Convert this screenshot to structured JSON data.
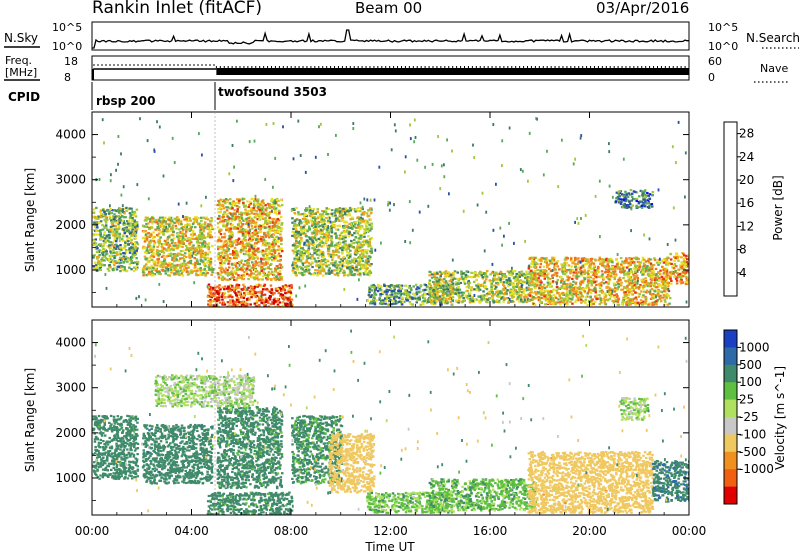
{
  "header": {
    "title": "Rankin Inlet (fitACF)",
    "beam": "Beam 00",
    "date": "03/Apr/2016"
  },
  "colors": {
    "noise_trace": "#000000",
    "axis": "#000000"
  },
  "noise_panel": {
    "left_label": "N.Sky",
    "right_label": "N.Search",
    "left_ticks": [
      "10^5",
      "10^0"
    ],
    "right_ticks": [
      "10^5",
      "10^0"
    ]
  },
  "freq_panel": {
    "left_label_1": "Freq.",
    "left_label_2": "[MHz]",
    "left_ticks": [
      "18",
      "8"
    ],
    "right_label": "Nave",
    "right_ticks": [
      "60",
      "0"
    ]
  },
  "cpid_panel": {
    "label": "CPID",
    "modes": [
      {
        "name": "rbsp 200",
        "start_hour": 0
      },
      {
        "name": "twofsound 3503",
        "start_hour": 5
      }
    ]
  },
  "x_axis": {
    "label": "Time UT",
    "ticks": [
      "00:00",
      "04:00",
      "08:00",
      "12:00",
      "16:00",
      "20:00",
      "00:00"
    ],
    "range_hours": [
      0,
      24
    ]
  },
  "chart_data": [
    {
      "type": "heatmap",
      "name": "power",
      "ylabel": "Slant Range [km]",
      "yticks": [
        "1000",
        "2000",
        "3000",
        "4000"
      ],
      "ylim": [
        180,
        4500
      ],
      "xlim_hours": [
        0,
        24
      ],
      "colorbar": {
        "label": "Power [dB]",
        "ticks": [
          "4",
          "8",
          "12",
          "16",
          "20",
          "24",
          "28"
        ],
        "range": [
          0,
          30
        ],
        "colors": [
          "#1010e8",
          "#2a4db0",
          "#3d7a6a",
          "#58a85a",
          "#9fc83a",
          "#e8e020",
          "#f0a020",
          "#f07020",
          "#e83010",
          "#d00000"
        ]
      },
      "echo_regions": [
        {
          "t0": 0.0,
          "t1": 1.8,
          "r0": 1000,
          "r1": 2400,
          "level": 12
        },
        {
          "t0": 2.0,
          "t1": 4.8,
          "r0": 900,
          "r1": 2200,
          "level": 16
        },
        {
          "t0": 5.0,
          "t1": 7.6,
          "r0": 800,
          "r1": 2600,
          "level": 18
        },
        {
          "t0": 8.0,
          "t1": 11.2,
          "r0": 900,
          "r1": 2400,
          "level": 14
        },
        {
          "t0": 4.6,
          "t1": 8.0,
          "r0": 200,
          "r1": 700,
          "level": 24
        },
        {
          "t0": 11.0,
          "t1": 14.5,
          "r0": 250,
          "r1": 700,
          "level": 10
        },
        {
          "t0": 13.5,
          "t1": 17.8,
          "r0": 300,
          "r1": 1000,
          "level": 14
        },
        {
          "t0": 17.5,
          "t1": 23.2,
          "r0": 250,
          "r1": 1300,
          "level": 18
        },
        {
          "t0": 21.0,
          "t1": 22.5,
          "r0": 2400,
          "r1": 2800,
          "level": 8
        },
        {
          "t0": 23.2,
          "t1": 24.0,
          "r0": 700,
          "r1": 1400,
          "level": 20
        }
      ]
    },
    {
      "type": "heatmap",
      "name": "velocity",
      "ylabel": "Slant Range [km]",
      "yticks": [
        "1000",
        "2000",
        "3000",
        "4000"
      ],
      "ylim": [
        180,
        4500
      ],
      "xlim_hours": [
        0,
        24
      ],
      "colorbar": {
        "label": "Velocity [m s^-1]",
        "ticks": [
          "1000",
          "500",
          "100",
          "25",
          "-25",
          "-100",
          "-500",
          "-1000"
        ],
        "colors": [
          "#1a3fc0",
          "#2f6aa8",
          "#3f8a6a",
          "#5fbf40",
          "#b0e060",
          "#c8c8c8",
          "#f0c860",
          "#f09020",
          "#f06010",
          "#e00000"
        ]
      },
      "echo_regions": [
        {
          "t0": 0.0,
          "t1": 1.8,
          "r0": 1000,
          "r1": 2400,
          "velocity": 250
        },
        {
          "t0": 2.0,
          "t1": 4.8,
          "r0": 900,
          "r1": 2200,
          "velocity": 300
        },
        {
          "t0": 5.0,
          "t1": 7.6,
          "r0": 800,
          "r1": 2600,
          "velocity": 200
        },
        {
          "t0": 8.0,
          "t1": 10.0,
          "r0": 900,
          "r1": 2400,
          "velocity": 150
        },
        {
          "t0": 9.5,
          "t1": 11.3,
          "r0": 700,
          "r1": 2000,
          "velocity": -300
        },
        {
          "t0": 4.6,
          "t1": 8.0,
          "r0": 200,
          "r1": 700,
          "velocity": 200
        },
        {
          "t0": 11.0,
          "t1": 14.5,
          "r0": 250,
          "r1": 700,
          "velocity": 50
        },
        {
          "t0": 13.5,
          "t1": 17.8,
          "r0": 300,
          "r1": 1000,
          "velocity": 60
        },
        {
          "t0": 17.5,
          "t1": 22.5,
          "r0": 250,
          "r1": 1600,
          "velocity": -300
        },
        {
          "t0": 21.2,
          "t1": 22.3,
          "r0": 2300,
          "r1": 2800,
          "velocity": 0
        },
        {
          "t0": 2.5,
          "t1": 6.5,
          "r0": 2600,
          "r1": 3300,
          "velocity": 0
        },
        {
          "t0": 22.5,
          "t1": 24.0,
          "r0": 500,
          "r1": 1400,
          "velocity": 400
        }
      ]
    }
  ]
}
